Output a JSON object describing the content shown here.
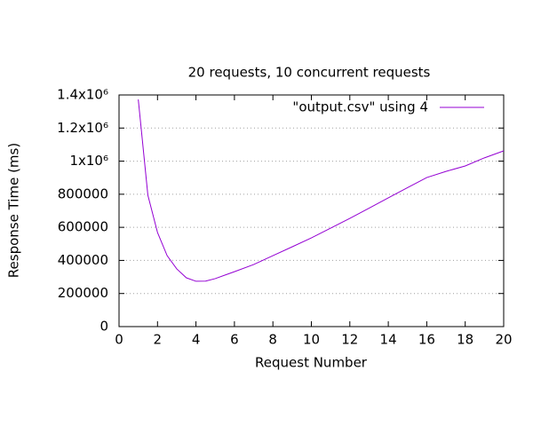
{
  "chart_data": {
    "type": "line",
    "title": "20 requests, 10 concurrent requests",
    "x_label": "Request Number",
    "y_label": "Response Time (ms)",
    "x": [
      1,
      1.5,
      2,
      2.5,
      3,
      3.5,
      4,
      4.5,
      5,
      6,
      7,
      8,
      9,
      10,
      11,
      12,
      13,
      14,
      15,
      16,
      17,
      18,
      19,
      20
    ],
    "series": [
      {
        "name": "\"output.csv\" using 4",
        "color": "#9400d3",
        "values": [
          1373000,
          794000,
          569000,
          429000,
          349000,
          295000,
          274000,
          275000,
          290000,
          332000,
          375000,
          429000,
          482000,
          536000,
          595000,
          654000,
          716000,
          778000,
          840000,
          901000,
          938000,
          971000,
          1020000,
          1062000
        ]
      }
    ],
    "xlim": [
      0,
      20
    ],
    "xticks": [
      0,
      2,
      4,
      6,
      8,
      10,
      12,
      14,
      16,
      18,
      20
    ],
    "ylim": [
      0,
      1400000
    ],
    "yticks": [
      0,
      200000,
      400000,
      600000,
      800000,
      {
        "value": 1000000,
        "label": "1x10⁶"
      },
      {
        "value": 1200000,
        "label": "1.2x10⁶"
      },
      {
        "value": 1400000,
        "label": "1.4x10⁶"
      }
    ],
    "grid": "y",
    "legend": "top right"
  }
}
